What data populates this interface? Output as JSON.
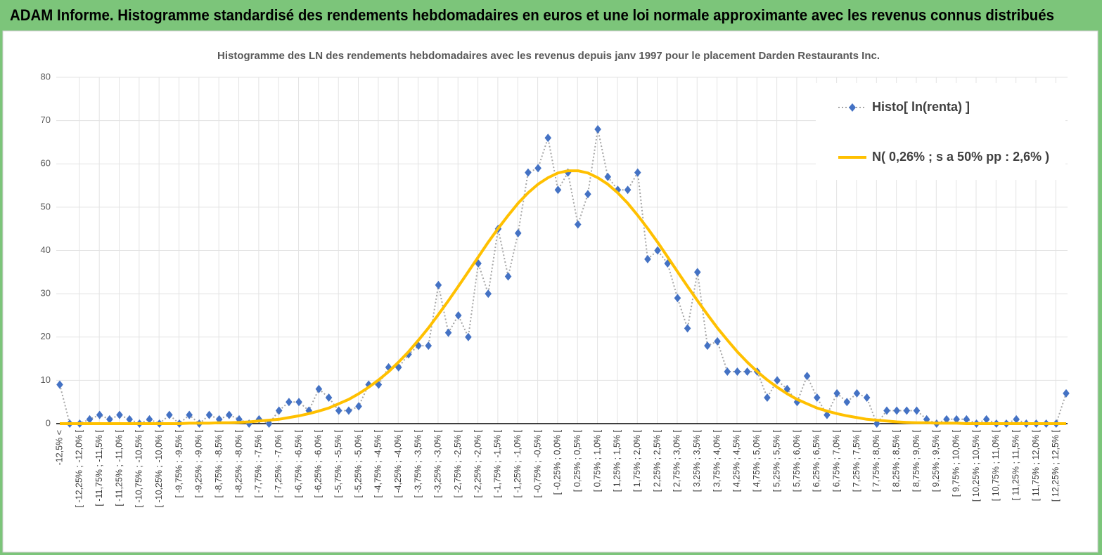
{
  "header": {
    "title": "ADAM Informe. Histogramme standardisé des rendements hebdomadaires en euros et une loi normale approximante avec les revenus connus distribués"
  },
  "chart_data": {
    "type": "line",
    "title": "Histogramme  des LN des rendements hebdomadaires avec les revenus depuis janv 1997 pour le placement Darden Restaurants Inc.",
    "categories": [
      "-12,5% <",
      null,
      "[ -12,25% ; -12,0% [",
      null,
      "[ -11,75% ; -11,5% [",
      null,
      "[ -11,25% ; -11,0% [",
      null,
      "[ -10,75% ; -10,5% [",
      null,
      "[ -10,25% ; -10,0% [",
      null,
      "[ -9,75% ; -9,5% [",
      null,
      "[ -9,25% ; -9,0% [",
      null,
      "[ -8,75% ; -8,5% [",
      null,
      "[ -8,25% ; -8,0% [",
      null,
      "[ -7,75% ; -7,5% [",
      null,
      "[ -7,25% ; -7,0% [",
      null,
      "[ -6,75% ; -6,5% [",
      null,
      "[ -6,25% ; -6,0% [",
      null,
      "[ -5,75% ; -5,5% [",
      null,
      "[ -5,25% ; -5,0% [",
      null,
      "[ -4,75% ; -4,5% [",
      null,
      "[ -4,25% ; -4,0% [",
      null,
      "[ -3,75% ; -3,5% [",
      null,
      "[ -3,25% ; -3,0% [",
      null,
      "[ -2,75% ; -2,5% [",
      null,
      "[ -2,25% ; -2,0% [",
      null,
      "[ -1,75% ; -1,5% [",
      null,
      "[ -1,25% ; -1,0% [",
      null,
      "[ -0,75% ; -0,5% [",
      null,
      "[ -0,25% ; 0,0% [",
      null,
      "[ 0,25% ; 0,5% [",
      null,
      "[ 0,75% ; 1,0% [",
      null,
      "[ 1,25% ; 1,5% [",
      null,
      "[ 1,75% ; 2,0% [",
      null,
      "[ 2,25% ; 2,5% [",
      null,
      "[ 2,75% ; 3,0% [",
      null,
      "[ 3,25% ; 3,5% [",
      null,
      "[ 3,75% ; 4,0% [",
      null,
      "[ 4,25% ; 4,5% [",
      null,
      "[ 4,75% ; 5,0% [",
      null,
      "[ 5,25% ; 5,5% [",
      null,
      "[ 5,75% ; 6,0% [",
      null,
      "[ 6,25% ; 6,5% [",
      null,
      "[ 6,75% ; 7,0% [",
      null,
      "[ 7,25% ; 7,5% [",
      null,
      "[ 7,75% ; 8,0% [",
      null,
      "[ 8,25% ; 8,5% [",
      null,
      "[ 8,75% ; 9,0% [",
      null,
      "[ 9,25% ; 9,5% [",
      null,
      "[ 9,75% ; 10,0% [",
      null,
      "[ 10,25% ; 10,5% [",
      null,
      "[ 10,75% ; 11,0% [",
      null,
      "[ 11,25% ; 11,5% [",
      null,
      "[ 11,75% ; 12,0% [",
      null,
      "[ 12,25% ; 12,5% [",
      null
    ],
    "series": [
      {
        "name": "Histo[ ln(renta) ]",
        "color": "#4472c4",
        "line_color": "#a6a6a6",
        "marker": "diamond",
        "values": [
          9,
          0,
          0,
          1,
          2,
          1,
          2,
          1,
          0,
          1,
          0,
          2,
          0,
          2,
          0,
          2,
          1,
          2,
          1,
          0,
          1,
          0,
          3,
          5,
          5,
          3,
          8,
          6,
          3,
          3,
          4,
          9,
          9,
          13,
          13,
          16,
          18,
          18,
          32,
          21,
          25,
          20,
          37,
          30,
          45,
          34,
          44,
          58,
          59,
          66,
          54,
          58,
          46,
          53,
          68,
          57,
          54,
          54,
          58,
          38,
          40,
          37,
          29,
          22,
          35,
          18,
          19,
          12,
          12,
          12,
          12,
          6,
          10,
          8,
          5,
          11,
          6,
          2,
          7,
          5,
          7,
          6,
          0,
          3,
          3,
          3,
          3,
          1,
          0,
          1,
          1,
          1,
          0,
          1,
          0,
          0,
          1,
          0,
          0,
          0,
          0,
          7
        ]
      },
      {
        "name": "N( 0,26% ; s a 50% pp : 2,6% )",
        "color": "#ffc000",
        "values": [
          0,
          0,
          0,
          0,
          0,
          0,
          0,
          0,
          0,
          0,
          0,
          0,
          0,
          0.1,
          0.1,
          0.1,
          0.2,
          0.2,
          0.3,
          0.4,
          0.6,
          0.8,
          1.0,
          1.4,
          1.8,
          2.3,
          2.9,
          3.6,
          4.6,
          5.6,
          6.9,
          8.4,
          10.1,
          12.0,
          14.2,
          16.6,
          19.3,
          22.1,
          25.2,
          28.4,
          31.7,
          35.1,
          38.5,
          41.9,
          45.1,
          48.1,
          50.9,
          53.3,
          55.3,
          56.8,
          57.9,
          58.4,
          58.4,
          57.9,
          56.8,
          55.3,
          53.3,
          50.9,
          48.1,
          45.1,
          41.9,
          38.5,
          35.1,
          31.7,
          28.4,
          25.2,
          22.1,
          19.3,
          16.6,
          14.2,
          12.0,
          10.1,
          8.4,
          6.9,
          5.6,
          4.6,
          3.6,
          2.9,
          2.3,
          1.8,
          1.4,
          1.0,
          0.8,
          0.6,
          0.4,
          0.3,
          0.2,
          0.2,
          0.1,
          0.1,
          0.1,
          0,
          0,
          0,
          0,
          0,
          0,
          0,
          0,
          0,
          0,
          0
        ]
      }
    ],
    "ylim": [
      0,
      80
    ],
    "yticks": [
      0,
      10,
      20,
      30,
      40,
      50,
      60,
      70,
      80
    ],
    "grid": true,
    "legend": "top-right"
  }
}
